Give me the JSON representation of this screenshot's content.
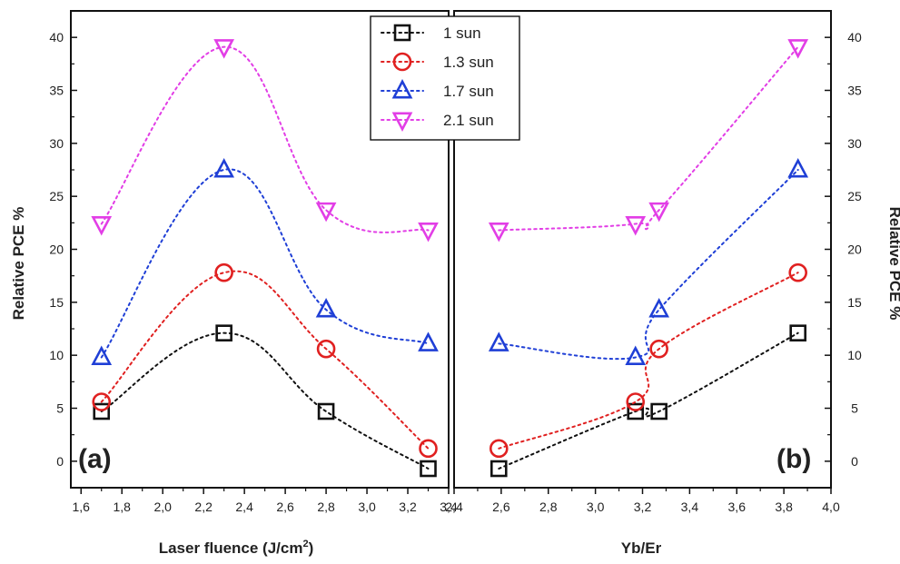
{
  "chart_data": {
    "type": "scatter",
    "ylabel": "Relative PCE %",
    "legend": {
      "placement": "top-center",
      "entries": [
        {
          "name": "1 sun",
          "marker": "square",
          "color": "#111111",
          "dash": "dot"
        },
        {
          "name": "1.3 sun",
          "marker": "circle",
          "color": "#e02020",
          "dash": "dot"
        },
        {
          "name": "1.7 sun",
          "marker": "triangle-up",
          "color": "#1f3fd6",
          "dash": "dot"
        },
        {
          "name": "2.1 sun",
          "marker": "triangle-down",
          "color": "#e23ee6",
          "dash": "dot"
        }
      ]
    },
    "ylim": [
      -2.5,
      42.5
    ],
    "yticks": [
      0,
      5,
      10,
      15,
      20,
      25,
      30,
      35,
      40
    ],
    "panels": [
      {
        "label": "(a)",
        "xlabel_main": "Laser fluence (J/cm",
        "xlabel_sup": "2",
        "xlabel_end": ")",
        "xlim": [
          1.55,
          3.4
        ],
        "xticks": [
          "1,6",
          "1,8",
          "2,0",
          "2,2",
          "2,4",
          "2,6",
          "2,8",
          "3,0",
          "3,2",
          "3,4"
        ],
        "xtick_values": [
          1.6,
          1.8,
          2.0,
          2.2,
          2.4,
          2.6,
          2.8,
          3.0,
          3.2,
          3.4
        ],
        "series": [
          {
            "name": "1 sun",
            "x": [
              1.7,
              2.3,
              2.8,
              3.3
            ],
            "y": [
              4.7,
              12.1,
              4.7,
              -0.7
            ]
          },
          {
            "name": "1.3 sun",
            "x": [
              1.7,
              2.3,
              2.8,
              3.3
            ],
            "y": [
              5.6,
              17.8,
              10.6,
              1.2
            ]
          },
          {
            "name": "1.7 sun",
            "x": [
              1.7,
              2.3,
              2.8,
              3.3
            ],
            "y": [
              9.8,
              27.5,
              14.3,
              11.1
            ]
          },
          {
            "name": "2.1 sun",
            "x": [
              1.7,
              2.3,
              2.8,
              3.3
            ],
            "y": [
              22.4,
              39.1,
              23.7,
              21.8
            ]
          }
        ]
      },
      {
        "label": "(b)",
        "xlabel_main": "Yb/Er",
        "xlabel_sup": "",
        "xlabel_end": "",
        "xlim": [
          2.4,
          4.0
        ],
        "xticks": [
          "2,4",
          "2,6",
          "2,8",
          "3,0",
          "3,2",
          "3,4",
          "3,6",
          "3,8",
          "4,0"
        ],
        "xtick_values": [
          2.4,
          2.6,
          2.8,
          3.0,
          3.2,
          3.4,
          3.6,
          3.8,
          4.0
        ],
        "series": [
          {
            "name": "1 sun",
            "x": [
              2.59,
              3.17,
              3.27,
              3.86
            ],
            "y": [
              -0.7,
              4.7,
              4.7,
              12.1
            ]
          },
          {
            "name": "1.3 sun",
            "x": [
              2.59,
              3.17,
              3.27,
              3.86
            ],
            "y": [
              1.2,
              5.6,
              10.6,
              17.8
            ]
          },
          {
            "name": "1.7 sun",
            "x": [
              2.59,
              3.17,
              3.27,
              3.86
            ],
            "y": [
              11.1,
              9.8,
              14.3,
              27.5
            ]
          },
          {
            "name": "2.1 sun",
            "x": [
              2.59,
              3.17,
              3.27,
              3.86
            ],
            "y": [
              21.8,
              22.4,
              23.7,
              39.1
            ]
          }
        ]
      }
    ]
  }
}
